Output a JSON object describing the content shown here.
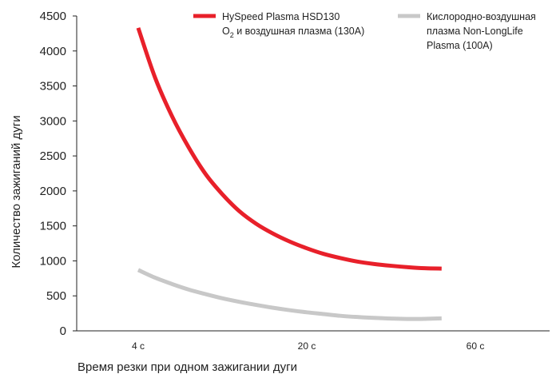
{
  "chart_data": {
    "type": "line",
    "xlabel": "Время резки при одном зажигании дуги",
    "ylabel": "Количество зажиганий дуги",
    "ylim": [
      0,
      4500
    ],
    "yticks": [
      "0",
      "500",
      "1000",
      "1500",
      "2000",
      "2500",
      "3000",
      "3500",
      "4000",
      "4500"
    ],
    "categories": [
      "4 c",
      "20 c",
      "60 c"
    ],
    "grid": false,
    "legend_position": "top-right",
    "series": [
      {
        "name": "HySpeed Plasma HSD130 O₂ и воздушная плазма (130A)",
        "legend_lines": [
          "HySpeed Plasma HSD130",
          "O",
          "2",
          " и воздушная плазма (130A)"
        ],
        "color": "#e8202a",
        "points": [
          [
            0,
            4330
          ],
          [
            0.1,
            3620
          ],
          [
            0.2,
            3070
          ],
          [
            0.3,
            2620
          ],
          [
            0.4,
            2240
          ],
          [
            0.5,
            1950
          ],
          [
            0.6,
            1710
          ],
          [
            0.7,
            1530
          ],
          [
            0.8,
            1390
          ],
          [
            0.9,
            1275
          ],
          [
            1.0,
            1180
          ],
          [
            1.1,
            1100
          ],
          [
            1.2,
            1040
          ],
          [
            1.3,
            990
          ],
          [
            1.4,
            955
          ],
          [
            1.5,
            930
          ],
          [
            1.6,
            910
          ],
          [
            1.7,
            895
          ],
          [
            1.8,
            890
          ]
        ]
      },
      {
        "name": "Кислородно-воздушная плазма Non-LongLife Plasma (100A)",
        "legend_lines": [
          "Кислородно-воздушная",
          "плазма Non-LongLife",
          "Plasma (100A)"
        ],
        "color": "#c8c8c8",
        "points": [
          [
            0,
            870
          ],
          [
            0.1,
            760
          ],
          [
            0.2,
            670
          ],
          [
            0.3,
            590
          ],
          [
            0.4,
            525
          ],
          [
            0.5,
            465
          ],
          [
            0.6,
            415
          ],
          [
            0.7,
            370
          ],
          [
            0.8,
            330
          ],
          [
            0.9,
            295
          ],
          [
            1.0,
            265
          ],
          [
            1.1,
            240
          ],
          [
            1.2,
            215
          ],
          [
            1.3,
            198
          ],
          [
            1.4,
            185
          ],
          [
            1.5,
            175
          ],
          [
            1.6,
            170
          ],
          [
            1.7,
            172
          ],
          [
            1.8,
            178
          ]
        ]
      }
    ]
  }
}
